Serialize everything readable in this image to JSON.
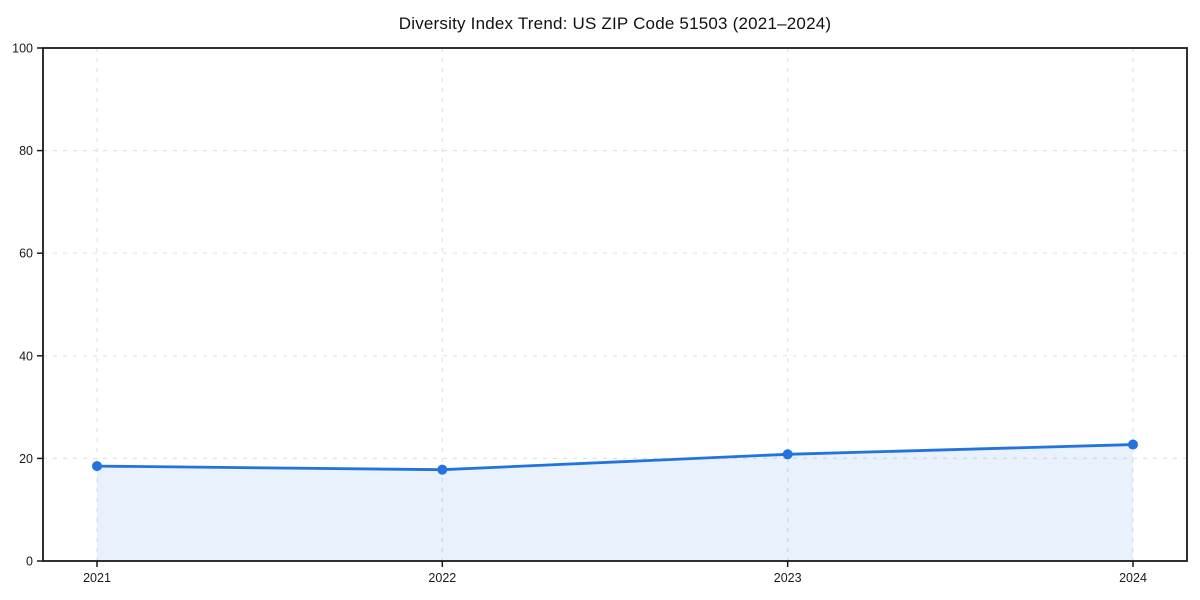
{
  "chart_data": {
    "type": "area",
    "title": "Diversity Index Trend: US ZIP Code 51503 (2021–2024)",
    "x": [
      2021,
      2022,
      2023,
      2024
    ],
    "xtick_labels": [
      "2021",
      "2022",
      "2023",
      "2024"
    ],
    "series": [
      {
        "name": "Diversity Index",
        "values": [
          18.5,
          17.8,
          20.8,
          22.7
        ]
      }
    ],
    "xlabel": "",
    "ylabel": "",
    "ylim": [
      0,
      100
    ],
    "yticks": [
      0,
      20,
      40,
      60,
      80,
      100
    ],
    "grid": true,
    "grid_style": "dashed",
    "legend": "none",
    "colors": {
      "line": "#2273de",
      "marker": "#2273de",
      "fill": "rgba(34,115,222,0.10)",
      "gridline": "#e2e2e2",
      "spine": "#1a1a1a",
      "tick_label": "#1a1a1a"
    }
  }
}
